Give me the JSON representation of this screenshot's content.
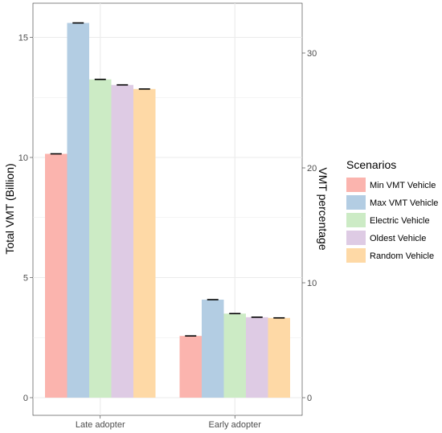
{
  "chart_data": {
    "type": "bar",
    "categories": [
      "Late adopter",
      "Early adopter"
    ],
    "series": [
      {
        "name": "Min VMT Vehicle",
        "values": [
          10.15,
          2.57
        ],
        "color": "#fbb4ae"
      },
      {
        "name": "Max VMT Vehicle",
        "values": [
          15.6,
          4.08
        ],
        "color": "#b3cde3"
      },
      {
        "name": "Electric Vehicle",
        "values": [
          13.25,
          3.5
        ],
        "color": "#ccebc5"
      },
      {
        "name": "Oldest Vehicle",
        "values": [
          13.02,
          3.35
        ],
        "color": "#decbe4"
      },
      {
        "name": "Random Vehicle",
        "values": [
          12.85,
          3.32
        ],
        "color": "#fed9a6"
      }
    ],
    "ylabel": "Total VMT (Billion)",
    "ylim": [
      0,
      16.3
    ],
    "y_ticks": [
      0,
      5,
      10,
      15
    ],
    "y2label": "VMT percentage",
    "y2lim": [
      0,
      34.2
    ],
    "y2_ticks": [
      0,
      10,
      20,
      30
    ],
    "legend_title": "Scenarios",
    "legend_position": "right",
    "error_bars": true,
    "grid": true
  }
}
